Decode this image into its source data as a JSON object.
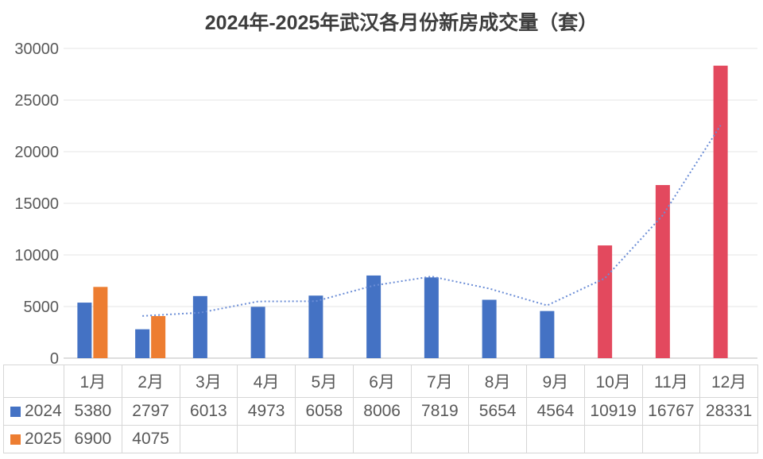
{
  "chart_data": {
    "type": "bar",
    "title": "2024年-2025年武汉各月份新房成交量（套）",
    "categories": [
      "1月",
      "2月",
      "3月",
      "4月",
      "5月",
      "6月",
      "7月",
      "8月",
      "9月",
      "10月",
      "11月",
      "12月"
    ],
    "series": [
      {
        "name": "2024",
        "color": "#4472C4",
        "highlight": {
          "color": "#E3495E",
          "months": [
            "10月",
            "11月",
            "12月"
          ]
        },
        "values": [
          5380,
          2797,
          6013,
          4973,
          6058,
          8006,
          7819,
          5654,
          4564,
          10919,
          16767,
          28331
        ]
      },
      {
        "name": "2025",
        "color": "#ED7D31",
        "values": [
          6900,
          4075,
          null,
          null,
          null,
          null,
          null,
          null,
          null,
          null,
          null,
          null
        ]
      }
    ],
    "trendline": {
      "attached_to": "2024",
      "kind": "moving-average",
      "period": 2,
      "style": "dotted",
      "color": "#6B8DD6",
      "values": [
        null,
        4088.5,
        4405,
        5493,
        5515.5,
        7032,
        7912.5,
        6736.5,
        5109,
        7741.5,
        13843,
        22549
      ]
    },
    "ylim": [
      0,
      30000
    ],
    "ytick_step": 5000,
    "yticks": [
      "0",
      "5000",
      "10000",
      "15000",
      "20000",
      "25000",
      "30000"
    ],
    "grid": true,
    "legend_position": "data-table-left",
    "data_table": true
  },
  "style": {
    "grid_color": "#e4e4e4",
    "axis_line_color": "#c9c9c9",
    "text_color": "#595959"
  }
}
